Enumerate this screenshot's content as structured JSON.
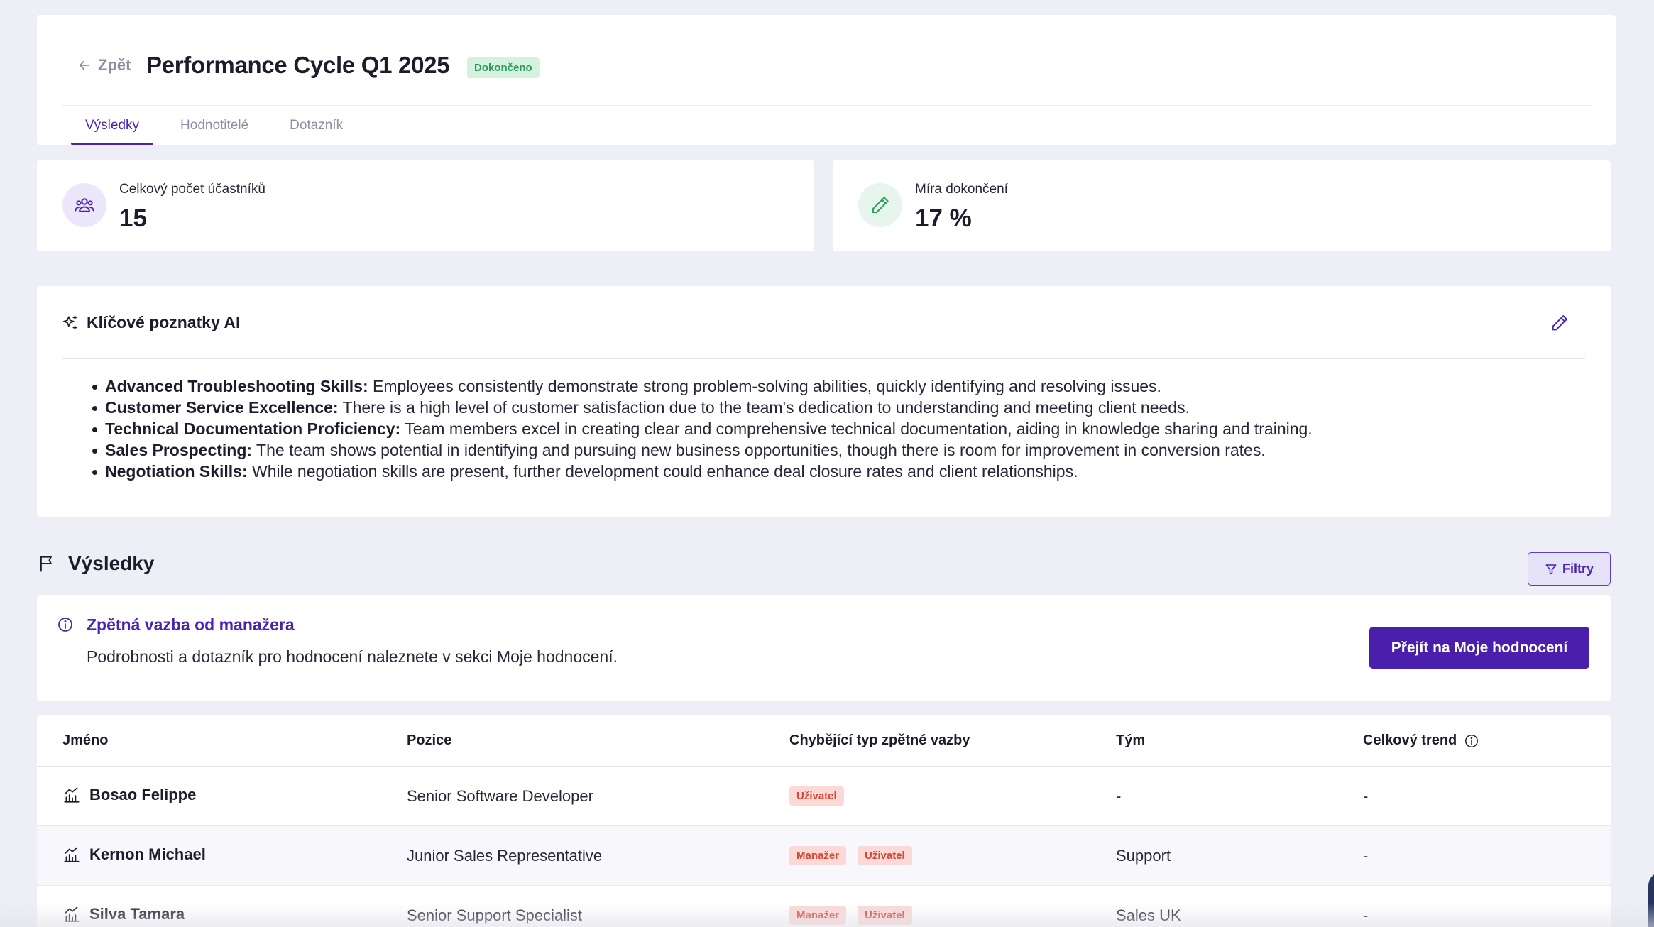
{
  "header": {
    "back_label": "Zpět",
    "title": "Performance Cycle Q1 2025",
    "status": "Dokončeno",
    "tabs": [
      {
        "label": "Výsledky",
        "active": true
      },
      {
        "label": "Hodnotitelé",
        "active": false
      },
      {
        "label": "Dotazník",
        "active": false
      }
    ]
  },
  "stats": {
    "participants": {
      "label": "Celkový počet účastníků",
      "value": "15",
      "icon": "users-icon"
    },
    "completion": {
      "label": "Míra dokončení",
      "value": "17 %",
      "icon": "pencil-icon"
    }
  },
  "ai_insights": {
    "title": "Klíčové poznatky AI",
    "items": [
      {
        "term": "Advanced Troubleshooting Skills:",
        "text": " Employees consistently demonstrate strong problem-solving abilities, quickly identifying and resolving issues."
      },
      {
        "term": "Customer Service Excellence:",
        "text": " There is a high level of customer satisfaction due to the team's dedication to understanding and meeting client needs."
      },
      {
        "term": "Technical Documentation Proficiency:",
        "text": " Team members excel in creating clear and comprehensive technical documentation, aiding in knowledge sharing and training."
      },
      {
        "term": "Sales Prospecting:",
        "text": " The team shows potential in identifying and pursuing new business opportunities, though there is room for improvement in conversion rates."
      },
      {
        "term": "Negotiation Skills:",
        "text": " While negotiation skills are present, further development could enhance deal closure rates and client relationships."
      }
    ]
  },
  "results": {
    "title": "Výsledky",
    "filter_label": "Filtry",
    "feedback": {
      "title": "Zpětná vazba od manažera",
      "text": "Podrobnosti a dotazník pro hodnocení naleznete v sekci Moje hodnocení.",
      "button": "Přejít na Moje hodnocení"
    },
    "table": {
      "columns": [
        "Jméno",
        "Pozice",
        "Chybějící typ zpětné vazby",
        "Tým",
        "Celkový trend"
      ],
      "rows": [
        {
          "name": "Bosao Felippe",
          "position": "Senior Software Developer",
          "missing": [
            "Uživatel"
          ],
          "team": "-",
          "trend": "-"
        },
        {
          "name": "Kernon Michael",
          "position": "Junior Sales Representative",
          "missing": [
            "Manažer",
            "Uživatel"
          ],
          "team": "Support",
          "trend": "-"
        },
        {
          "name": "Silva Tamara",
          "position": "Senior Support Specialist",
          "missing": [
            "Manažer",
            "Uživatel"
          ],
          "team": "Sales UK",
          "trend": "-"
        }
      ]
    }
  },
  "colors": {
    "accent": "#4b23b0",
    "badge_success_bg": "#d5f2e0",
    "badge_success_text": "#2b9a5b",
    "tag_bg": "#fbd9d6",
    "tag_text": "#d4483a",
    "background": "#eeeff6"
  }
}
